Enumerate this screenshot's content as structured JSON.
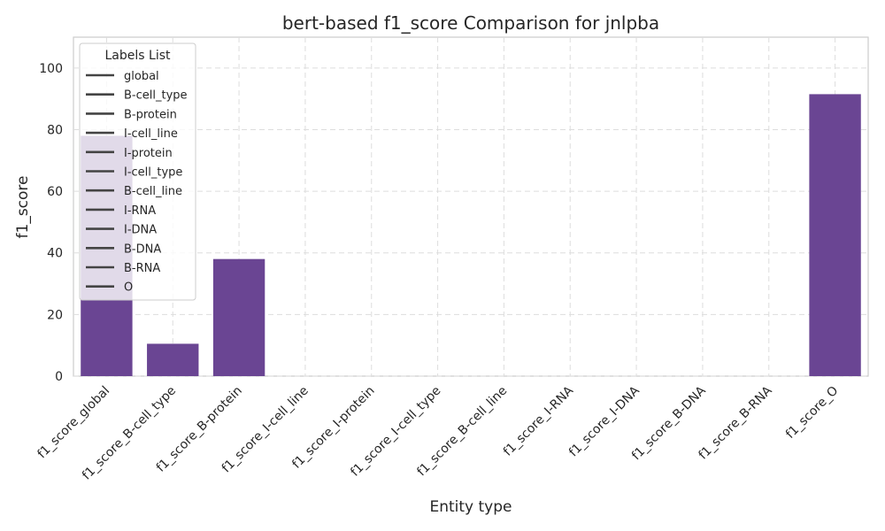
{
  "chart_data": {
    "type": "bar",
    "title": "bert-based  f1_score Comparison for jnlpba",
    "xlabel": "Entity type",
    "ylabel": "f1_score",
    "ylim": [
      0,
      110
    ],
    "yticks": [
      0,
      20,
      40,
      60,
      80,
      100
    ],
    "grid": true,
    "categories": [
      "f1_score_global",
      "f1_score_B-cell_type",
      "f1_score_B-protein",
      "f1_score_I-cell_line",
      "f1_score_I-protein",
      "f1_score_I-cell_type",
      "f1_score_B-cell_line",
      "f1_score_I-RNA",
      "f1_score_I-DNA",
      "f1_score_B-DNA",
      "f1_score_B-RNA",
      "f1_score_O"
    ],
    "values": [
      78,
      10.5,
      38,
      0,
      0,
      0,
      0,
      0,
      0,
      0,
      0,
      91.5
    ],
    "bar_color": "#6a4593",
    "legend": {
      "title": "Labels List",
      "placement": "top-left",
      "entries": [
        "global",
        "B-cell_type",
        "B-protein",
        "I-cell_line",
        "I-protein",
        "I-cell_type",
        "B-cell_line",
        "I-RNA",
        "I-DNA",
        "B-DNA",
        "B-RNA",
        "O"
      ]
    }
  }
}
